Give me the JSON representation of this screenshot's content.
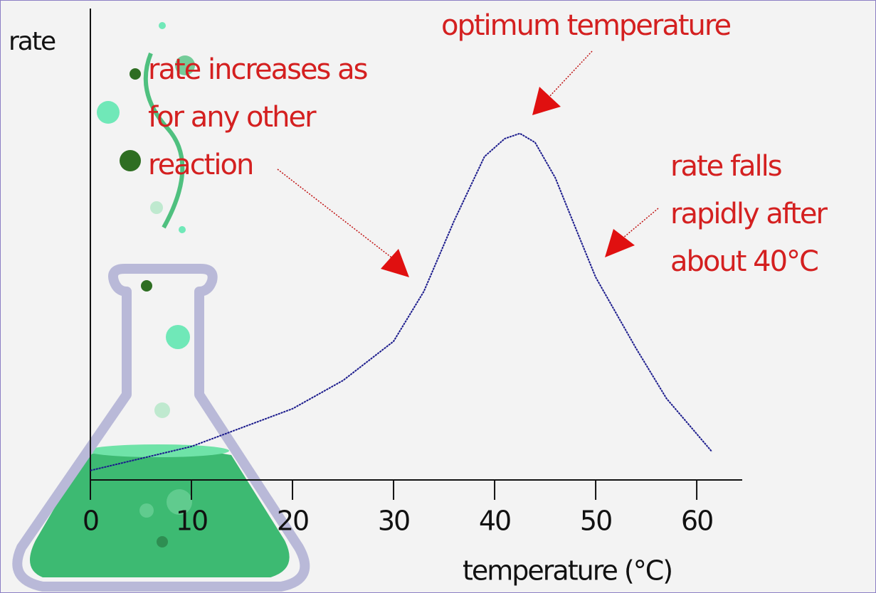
{
  "chart_data": {
    "type": "line",
    "ylabel": "rate",
    "xlabel": "temperature (°C)",
    "x": [
      0,
      10,
      20,
      25,
      30,
      33,
      36,
      39,
      41,
      42.5,
      44,
      46,
      48,
      50,
      54,
      57,
      61.5
    ],
    "values": [
      2.0,
      7.1,
      15.1,
      21.1,
      29.4,
      40,
      55,
      68.6,
      72.4,
      73.5,
      71.6,
      64.1,
      53.5,
      43,
      27.9,
      17.3,
      6.0
    ],
    "color": "#1a1a8c",
    "xlim": [
      0,
      64.5
    ],
    "ylim": [
      0,
      100
    ],
    "xticks": [
      0,
      10,
      20,
      30,
      40,
      50,
      60
    ],
    "annotations": [
      [
        "rate increases as",
        "for any other",
        "reaction"
      ],
      [
        "optimum temperature"
      ],
      [
        "rate falls",
        "rapidly after",
        "about 40°C"
      ]
    ]
  }
}
